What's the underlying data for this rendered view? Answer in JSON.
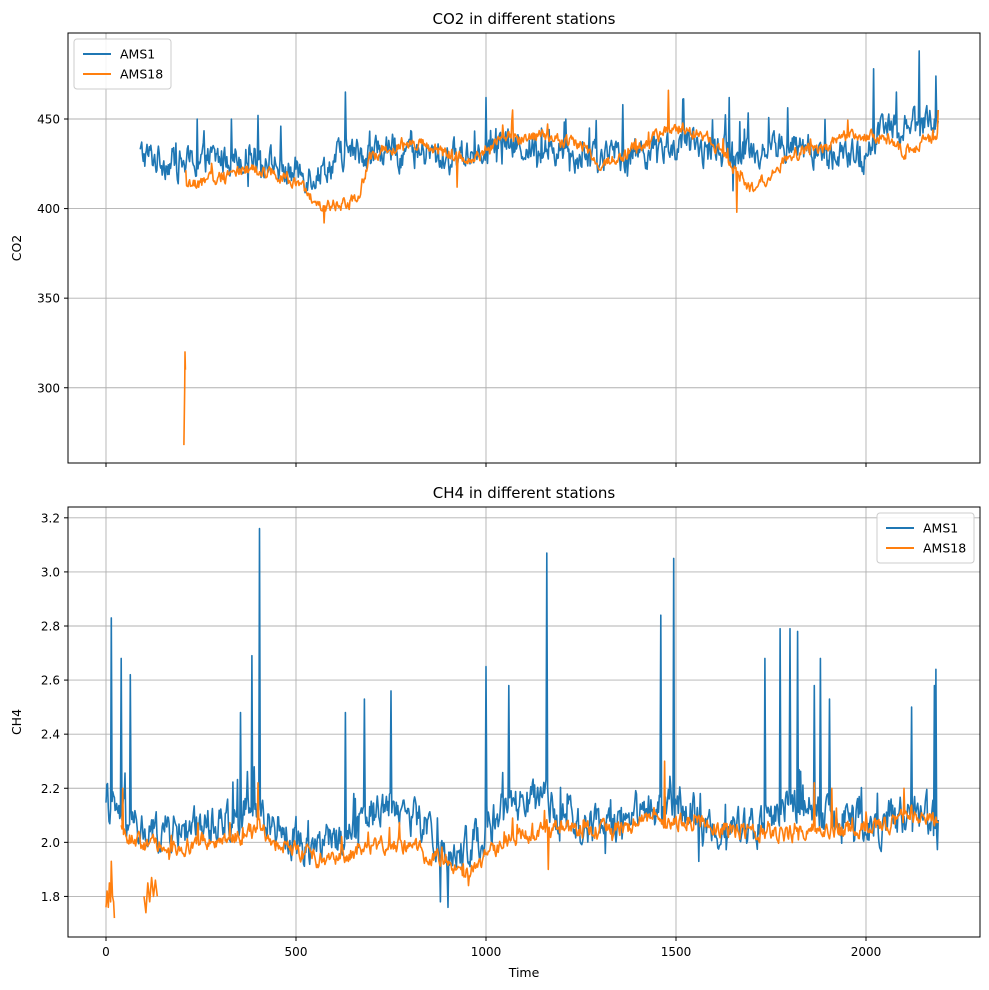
{
  "chart_data": [
    {
      "type": "line",
      "title": "CO2 in different stations",
      "xlabel": "",
      "ylabel": "CO2",
      "xlim": [
        -100,
        2300
      ],
      "ylim": [
        258,
        498
      ],
      "xticks": [
        0,
        500,
        1000,
        1500,
        2000
      ],
      "yticks": [
        300,
        350,
        400,
        450
      ],
      "show_xtick_labels": false,
      "grid": true,
      "legend_position": "top-left",
      "series": [
        {
          "name": "AMS1",
          "color": "#1f77b4",
          "x_start": 90,
          "x_end": 2190,
          "base": 430,
          "noise": 10,
          "anchors": [
            [
              90,
              430
            ],
            [
              200,
              425
            ],
            [
              300,
              428
            ],
            [
              400,
              430
            ],
            [
              480,
              420
            ],
            [
              560,
              420
            ],
            [
              620,
              430
            ],
            [
              700,
              432
            ],
            [
              800,
              432
            ],
            [
              900,
              428
            ],
            [
              1000,
              435
            ],
            [
              1100,
              435
            ],
            [
              1200,
              432
            ],
            [
              1300,
              428
            ],
            [
              1400,
              432
            ],
            [
              1500,
              435
            ],
            [
              1600,
              432
            ],
            [
              1700,
              432
            ],
            [
              1800,
              435
            ],
            [
              1900,
              430
            ],
            [
              2000,
              428
            ],
            [
              2050,
              450
            ],
            [
              2100,
              445
            ],
            [
              2190,
              450
            ]
          ],
          "spikes": [
            [
              400,
              452
            ],
            [
              630,
              465
            ],
            [
              1000,
              462
            ],
            [
              1360,
              458
            ],
            [
              1640,
              462
            ],
            [
              2020,
              478
            ],
            [
              2140,
              488
            ],
            [
              2185,
              474
            ],
            [
              240,
              450
            ],
            [
              330,
              450
            ],
            [
              1210,
              450
            ],
            [
              460,
              446
            ],
            [
              1650,
              410
            ],
            [
              2080,
              465
            ]
          ]
        },
        {
          "name": "AMS18",
          "color": "#ff7f0e",
          "x_start": 210,
          "x_end": 2190,
          "base": 420,
          "noise": 4,
          "anchors": [
            [
              210,
              412
            ],
            [
              280,
              416
            ],
            [
              350,
              422
            ],
            [
              450,
              420
            ],
            [
              520,
              410
            ],
            [
              570,
              400
            ],
            [
              620,
              403
            ],
            [
              660,
              405
            ],
            [
              700,
              430
            ],
            [
              800,
              438
            ],
            [
              900,
              430
            ],
            [
              960,
              428
            ],
            [
              1000,
              432
            ],
            [
              1050,
              440
            ],
            [
              1150,
              440
            ],
            [
              1250,
              436
            ],
            [
              1300,
              424
            ],
            [
              1380,
              432
            ],
            [
              1450,
              440
            ],
            [
              1500,
              445
            ],
            [
              1580,
              440
            ],
            [
              1640,
              425
            ],
            [
              1700,
              410
            ],
            [
              1750,
              420
            ],
            [
              1800,
              430
            ],
            [
              1900,
              435
            ],
            [
              1950,
              440
            ],
            [
              2050,
              440
            ],
            [
              2100,
              432
            ],
            [
              2190,
              440
            ]
          ],
          "spikes": [
            [
              1480,
              466
            ],
            [
              1070,
              455
            ],
            [
              575,
              392
            ],
            [
              1660,
              398
            ],
            [
              2190,
              455
            ],
            [
              925,
              412
            ]
          ],
          "extra_segments": [
            [
              [
                205,
                268
              ],
              [
                207,
                300
              ],
              [
                208,
                320
              ],
              [
                209,
                310
              ]
            ]
          ]
        }
      ]
    },
    {
      "type": "line",
      "title": "CH4 in different stations",
      "xlabel": "Time",
      "ylabel": "CH4",
      "xlim": [
        -100,
        2300
      ],
      "ylim": [
        1.65,
        3.24
      ],
      "xticks": [
        0,
        500,
        1000,
        1500,
        2000
      ],
      "xtick_labels": [
        "0",
        "500",
        "1000",
        "1500",
        "2000"
      ],
      "yticks": [
        1.8,
        2.0,
        2.2,
        2.4,
        2.6,
        2.8,
        3.0,
        3.2
      ],
      "ytick_labels": [
        "1.8",
        "2.0",
        "2.2",
        "2.4",
        "2.6",
        "2.8",
        "3.0",
        "3.2"
      ],
      "show_xtick_labels": true,
      "grid": true,
      "legend_position": "top-right",
      "series": [
        {
          "name": "AMS1",
          "color": "#1f77b4",
          "x_start": 0,
          "x_end": 2190,
          "base": 2.05,
          "noise": 0.08,
          "anchors": [
            [
              0,
              2.15
            ],
            [
              30,
              2.1
            ],
            [
              100,
              2.03
            ],
            [
              200,
              2.05
            ],
            [
              300,
              2.08
            ],
            [
              380,
              2.12
            ],
            [
              420,
              2.1
            ],
            [
              500,
              2.0
            ],
            [
              600,
              2.0
            ],
            [
              650,
              2.08
            ],
            [
              750,
              2.15
            ],
            [
              850,
              2.05
            ],
            [
              900,
              1.93
            ],
            [
              940,
              1.97
            ],
            [
              1000,
              2.05
            ],
            [
              1050,
              2.12
            ],
            [
              1150,
              2.15
            ],
            [
              1200,
              2.1
            ],
            [
              1250,
              2.05
            ],
            [
              1300,
              2.05
            ],
            [
              1400,
              2.12
            ],
            [
              1500,
              2.15
            ],
            [
              1600,
              2.05
            ],
            [
              1700,
              2.05
            ],
            [
              1800,
              2.15
            ],
            [
              1900,
              2.08
            ],
            [
              2000,
              2.05
            ],
            [
              2100,
              2.1
            ],
            [
              2190,
              2.1
            ]
          ],
          "spikes": [
            [
              15,
              2.83
            ],
            [
              40,
              2.68
            ],
            [
              65,
              2.62
            ],
            [
              355,
              2.48
            ],
            [
              385,
              2.69
            ],
            [
              405,
              3.16
            ],
            [
              630,
              2.48
            ],
            [
              680,
              2.53
            ],
            [
              750,
              2.56
            ],
            [
              1000,
              2.65
            ],
            [
              1060,
              2.58
            ],
            [
              1160,
              3.07
            ],
            [
              1460,
              2.84
            ],
            [
              1495,
              3.05
            ],
            [
              1735,
              2.68
            ],
            [
              1775,
              2.79
            ],
            [
              1800,
              2.79
            ],
            [
              1820,
              2.78
            ],
            [
              1865,
              2.58
            ],
            [
              1880,
              2.68
            ],
            [
              1905,
              2.53
            ],
            [
              2120,
              2.5
            ],
            [
              2180,
              2.58
            ],
            [
              2185,
              2.64
            ],
            [
              880,
              1.78
            ],
            [
              900,
              1.76
            ],
            [
              1560,
              1.93
            ]
          ]
        },
        {
          "name": "AMS18",
          "color": "#ff7f0e",
          "x_start": 40,
          "x_end": 2190,
          "base": 2.0,
          "noise": 0.035,
          "anchors": [
            [
              40,
              2.05
            ],
            [
              80,
              2.0
            ],
            [
              150,
              1.98
            ],
            [
              250,
              2.0
            ],
            [
              350,
              2.02
            ],
            [
              400,
              2.05
            ],
            [
              450,
              2.0
            ],
            [
              550,
              1.94
            ],
            [
              650,
              1.96
            ],
            [
              750,
              2.0
            ],
            [
              800,
              1.98
            ],
            [
              900,
              1.93
            ],
            [
              950,
              1.88
            ],
            [
              1000,
              1.95
            ],
            [
              1050,
              2.0
            ],
            [
              1150,
              2.05
            ],
            [
              1250,
              2.05
            ],
            [
              1350,
              2.05
            ],
            [
              1450,
              2.1
            ],
            [
              1500,
              2.08
            ],
            [
              1600,
              2.06
            ],
            [
              1700,
              2.03
            ],
            [
              1800,
              2.03
            ],
            [
              1900,
              2.05
            ],
            [
              2000,
              2.05
            ],
            [
              2100,
              2.08
            ],
            [
              2190,
              2.08
            ]
          ],
          "spikes": [
            [
              45,
              2.2
            ],
            [
              400,
              2.22
            ],
            [
              1470,
              2.3
            ],
            [
              1865,
              2.22
            ],
            [
              1910,
              2.2
            ],
            [
              2100,
              2.2
            ],
            [
              1165,
              1.9
            ],
            [
              955,
              1.84
            ]
          ],
          "extra_segments": [
            [
              [
                0,
                1.76
              ],
              [
                3,
                1.82
              ],
              [
                6,
                1.76
              ],
              [
                9,
                1.85
              ],
              [
                12,
                1.78
              ],
              [
                14,
                1.93
              ],
              [
                17,
                1.8
              ],
              [
                20,
                1.78
              ],
              [
                22,
                1.72
              ]
            ],
            [
              [
                100,
                1.8
              ],
              [
                105,
                1.74
              ],
              [
                110,
                1.85
              ],
              [
                115,
                1.78
              ],
              [
                120,
                1.87
              ],
              [
                125,
                1.8
              ],
              [
                130,
                1.86
              ],
              [
                135,
                1.8
              ]
            ]
          ]
        }
      ]
    }
  ]
}
